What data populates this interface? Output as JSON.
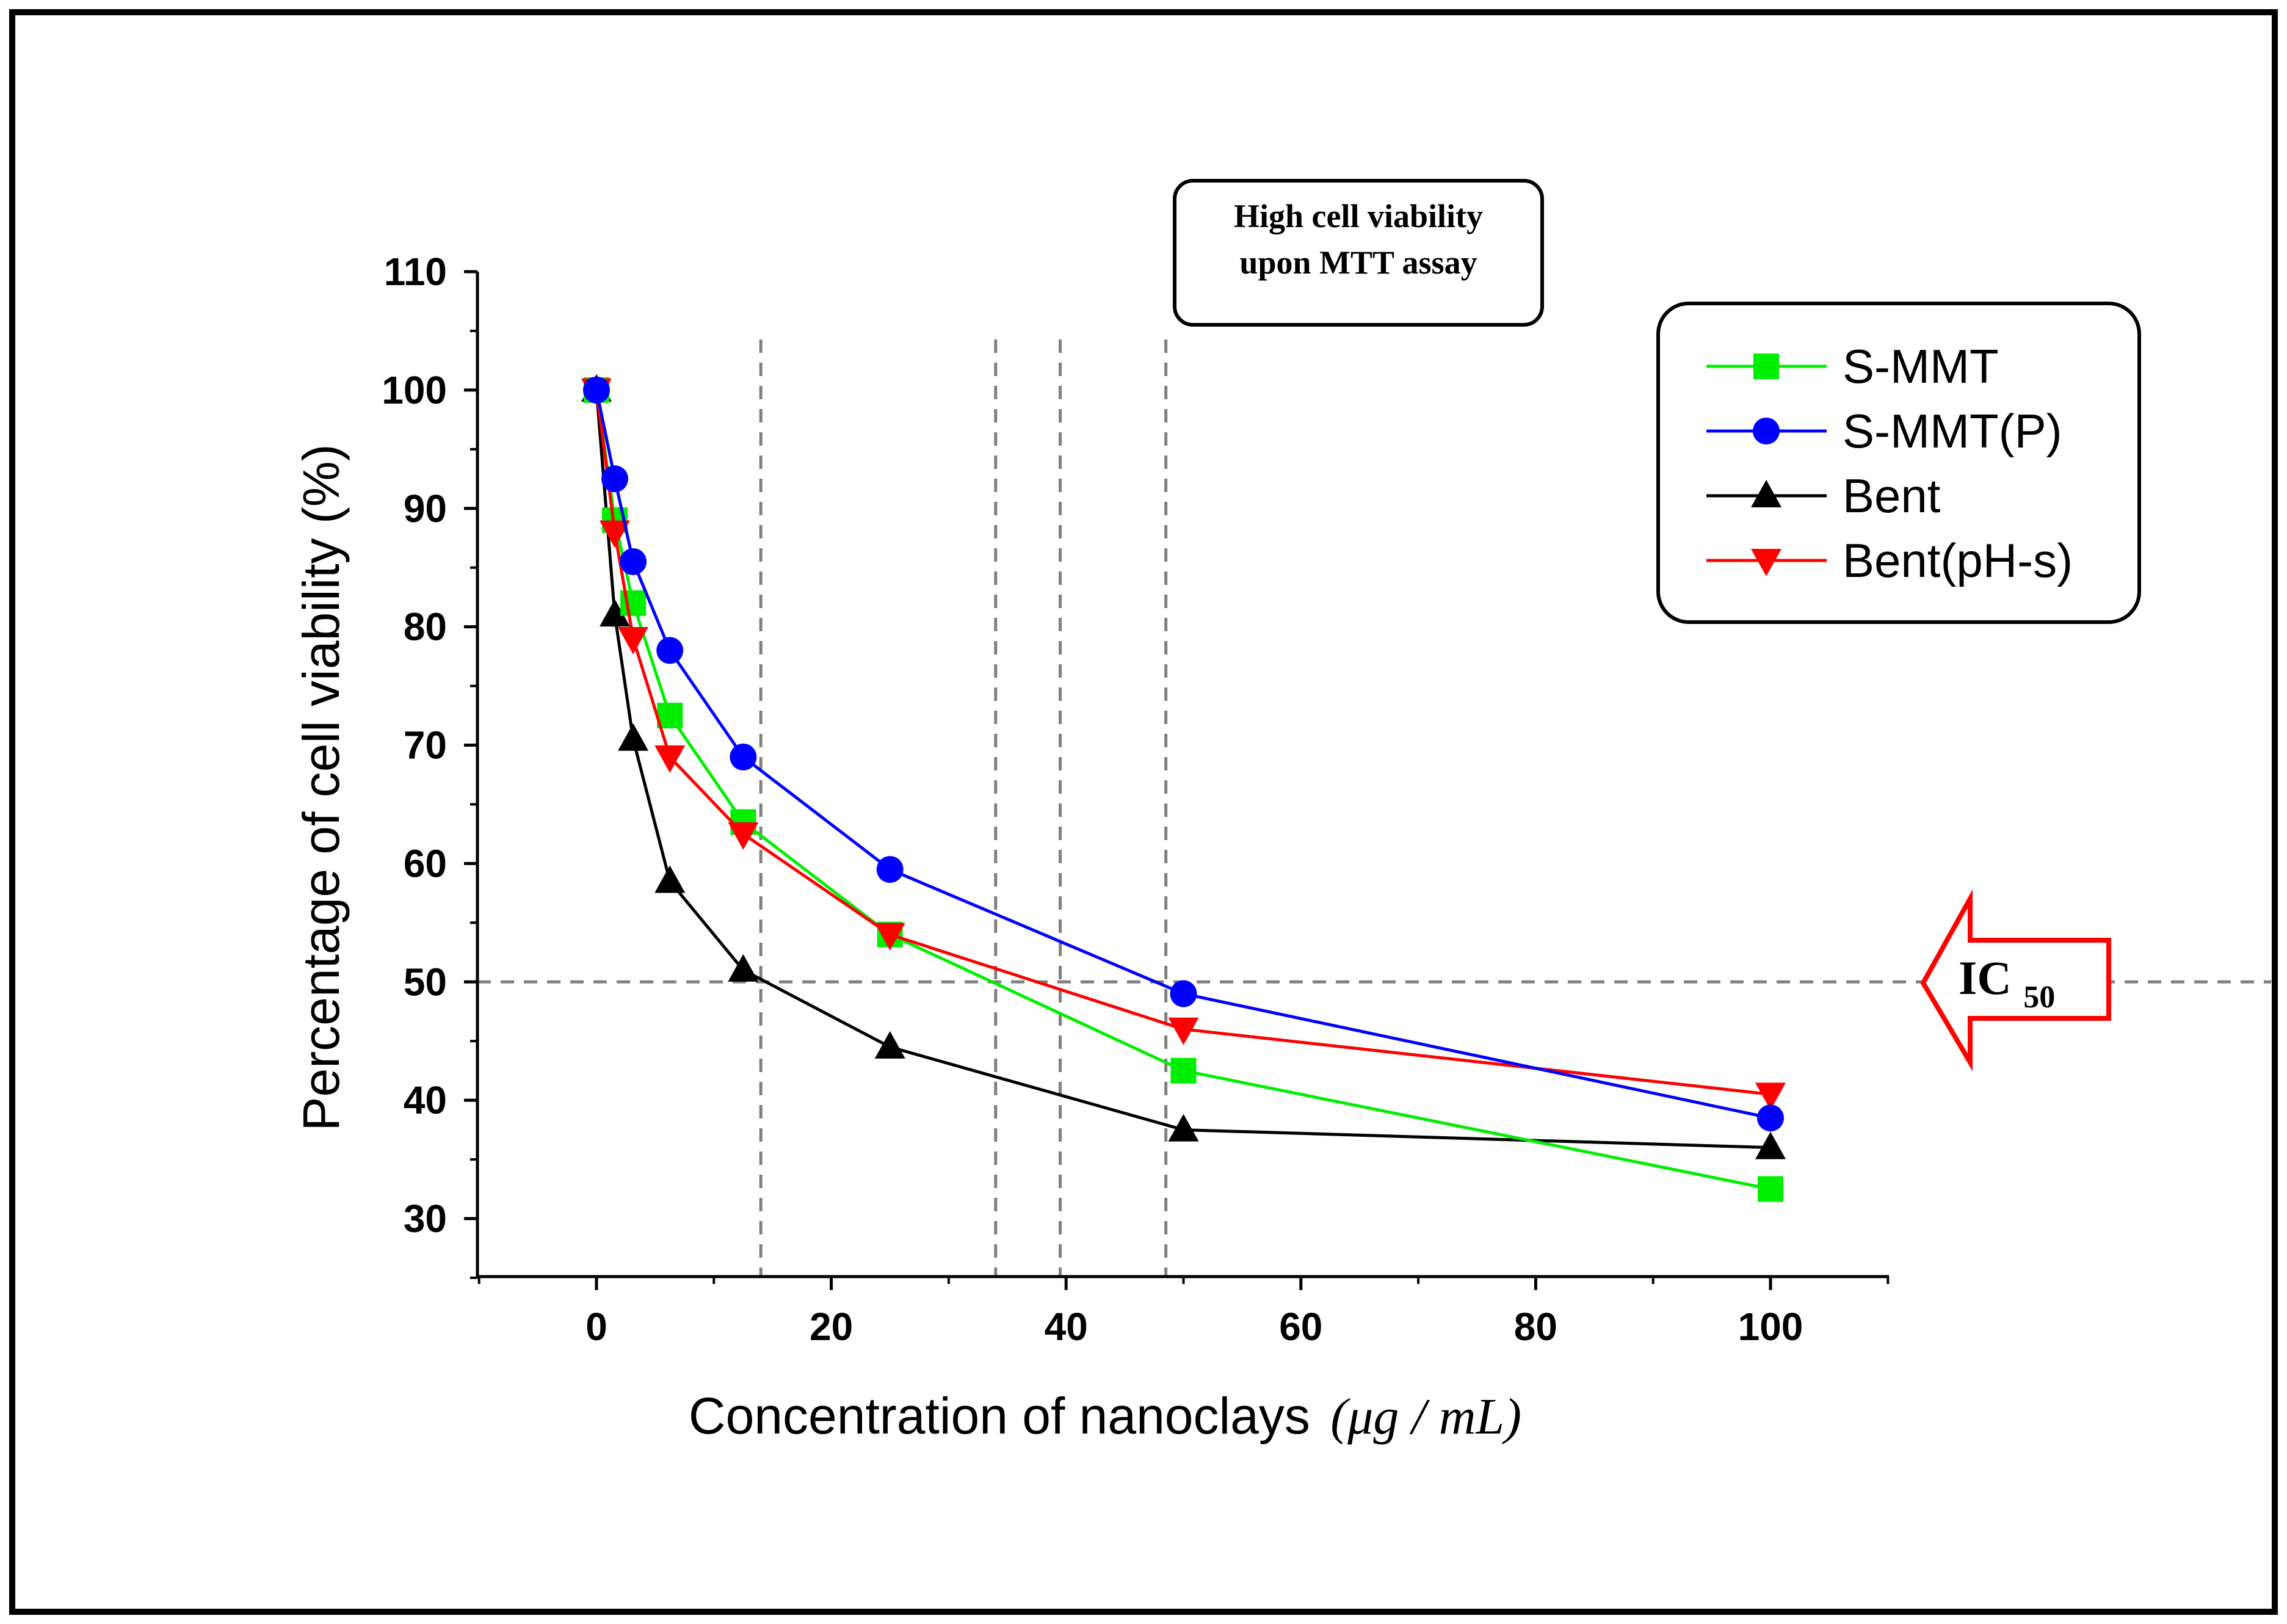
{
  "chart_data": {
    "type": "line",
    "title": "",
    "xlabel": "Concentration of nanoclays",
    "xlabel_unit": "(μg / mL)",
    "ylabel": "Percentage of cell viability (%)",
    "xlim": [
      -10,
      110
    ],
    "ylim": [
      25,
      110
    ],
    "x_ticks": [
      0,
      20,
      40,
      60,
      80,
      100
    ],
    "x_tick_labels": [
      "0",
      "20",
      "40",
      "60",
      "80",
      "100"
    ],
    "y_ticks": [
      30,
      40,
      50,
      60,
      70,
      80,
      90,
      100,
      110
    ],
    "y_tick_labels": [
      "30",
      "40",
      "50",
      "60",
      "70",
      "80",
      "90",
      "100",
      "110"
    ],
    "grid": false,
    "legend_position": "top-right",
    "series": [
      {
        "name": "S-MMT",
        "color": "#00ee00",
        "marker": "square",
        "x": [
          0,
          1.56,
          3.125,
          6.25,
          12.5,
          25,
          50,
          100
        ],
        "values": [
          100,
          89,
          82,
          72.5,
          63.5,
          54,
          42.5,
          32.5
        ]
      },
      {
        "name": "S-MMT(P)",
        "color": "#0000ff",
        "marker": "circle",
        "x": [
          0,
          1.56,
          3.125,
          6.25,
          12.5,
          25,
          50,
          100
        ],
        "values": [
          100,
          92.5,
          85.5,
          78,
          69,
          59.5,
          49,
          38.5
        ]
      },
      {
        "name": "Bent",
        "color": "#000000",
        "marker": "triangle-up",
        "x": [
          0,
          1.56,
          3.125,
          6.25,
          12.5,
          25,
          50,
          100
        ],
        "values": [
          100,
          81,
          70.5,
          58.5,
          51,
          44.5,
          37.5,
          36
        ]
      },
      {
        "name": "Bent(pH-s)",
        "color": "#ff0000",
        "marker": "triangle-down",
        "x": [
          0,
          1.56,
          3.125,
          6.25,
          12.5,
          25,
          50,
          100
        ],
        "values": [
          100,
          88,
          79,
          69,
          62.5,
          54,
          46,
          40.5
        ]
      }
    ],
    "reference_lines": {
      "horizontal_y": [
        50
      ],
      "vertical_x": [
        14,
        34,
        39.5,
        48.5
      ]
    },
    "annotations": {
      "ic50_main": "IC",
      "ic50_sub": "50",
      "box_line1": "High cell viability",
      "box_line2": "upon MTT assay"
    }
  }
}
